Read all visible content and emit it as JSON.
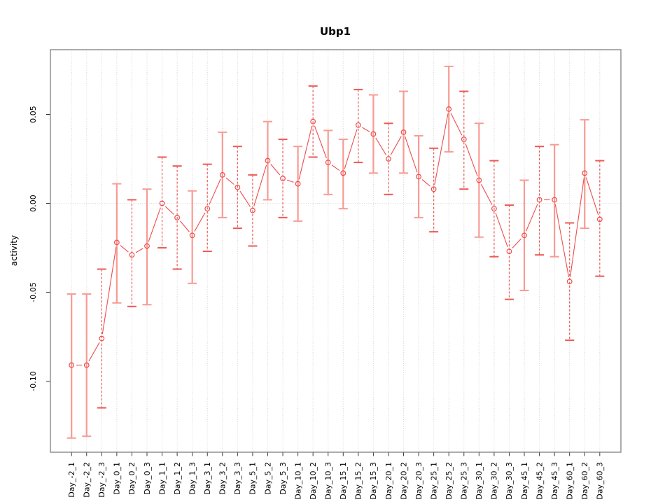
{
  "window": {
    "title": "R Graphics plot"
  },
  "colors": {
    "series_red": "#ef4b4b",
    "bar_solid_pink": "#f89b94",
    "bar_dashed_red": "#ec5a55",
    "grid_gray": "#d2d2d2",
    "zero_line_gray": "#d8d8d8",
    "box_gray": "#7f7f7f",
    "tick_dark": "#3a3a3a",
    "text_black": "#000000",
    "background": "#ffffff"
  },
  "chart_data": {
    "type": "line",
    "title": "Ubp1",
    "xlabel": "",
    "ylabel": "activity",
    "ylim": [
      -0.14,
      0.086
    ],
    "grid": "vertical dotted gridline at every category; horizontal dotted line at y=0 only; legend: none",
    "yticks": [
      0.05,
      0.0,
      -0.05,
      -0.1
    ],
    "ytick_labels": [
      "0.05",
      "0.00",
      "-0.05",
      "-0.10"
    ],
    "marker": "open-circle",
    "categories": [
      "Day_-2_1",
      "Day_-2_2",
      "Day_-2_3",
      "Day_0_1",
      "Day_0_2",
      "Day_0_3",
      "Day_1_1",
      "Day_1_2",
      "Day_1_3",
      "Day_3_1",
      "Day_3_2",
      "Day_3_3",
      "Day_5_1",
      "Day_5_2",
      "Day_5_3",
      "Day_10_1",
      "Day_10_2",
      "Day_10_3",
      "Day_15_1",
      "Day_15_2",
      "Day_15_3",
      "Day_20_1",
      "Day_20_2",
      "Day_20_3",
      "Day_25_1",
      "Day_25_2",
      "Day_25_3",
      "Day_30_1",
      "Day_30_2",
      "Day_30_3",
      "Day_45_1",
      "Day_45_2",
      "Day_45_3",
      "Day_60_1",
      "Day_60_2",
      "Day_60_3"
    ],
    "values": [
      -0.091,
      -0.091,
      -0.076,
      -0.022,
      -0.029,
      -0.024,
      0.0,
      -0.008,
      -0.018,
      -0.003,
      0.016,
      0.009,
      -0.004,
      0.024,
      0.014,
      0.011,
      0.046,
      0.023,
      0.017,
      0.044,
      0.039,
      0.025,
      0.04,
      0.015,
      0.008,
      0.053,
      0.036,
      0.013,
      -0.003,
      -0.027,
      -0.018,
      0.002,
      0.002,
      -0.044,
      0.017,
      -0.009
    ],
    "error_high": [
      -0.051,
      -0.051,
      -0.037,
      0.011,
      0.002,
      0.008,
      0.026,
      0.021,
      0.007,
      0.022,
      0.04,
      0.032,
      0.016,
      0.046,
      0.036,
      0.032,
      0.066,
      0.041,
      0.036,
      0.064,
      0.061,
      0.045,
      0.063,
      0.038,
      0.031,
      0.077,
      0.063,
      0.045,
      0.024,
      -0.001,
      0.013,
      0.032,
      0.033,
      -0.011,
      0.047,
      0.024
    ],
    "error_low": [
      -0.132,
      -0.131,
      -0.115,
      -0.056,
      -0.058,
      -0.057,
      -0.025,
      -0.037,
      -0.045,
      -0.027,
      -0.008,
      -0.014,
      -0.024,
      0.002,
      -0.008,
      -0.01,
      0.026,
      0.005,
      -0.003,
      0.023,
      0.017,
      0.005,
      0.017,
      -0.008,
      -0.016,
      0.029,
      0.008,
      -0.019,
      -0.03,
      -0.054,
      -0.049,
      -0.029,
      -0.03,
      -0.077,
      -0.014,
      -0.041
    ],
    "bar_styles": [
      "solid",
      "solid",
      "dashed",
      "solid",
      "dashed",
      "solid",
      "dashed",
      "dashed",
      "solid",
      "dashed",
      "solid",
      "dashed",
      "dashed",
      "solid",
      "dashed",
      "solid",
      "dashed",
      "solid",
      "solid",
      "dashed",
      "solid",
      "dashed",
      "solid",
      "solid",
      "dashed",
      "solid",
      "dashed",
      "solid",
      "dashed",
      "dashed",
      "solid",
      "dashed",
      "solid",
      "dashed",
      "solid",
      "dashed"
    ]
  }
}
